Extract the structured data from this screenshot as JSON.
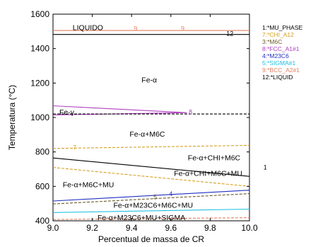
{
  "chart_data": {
    "type": "line",
    "title": "",
    "xlabel": "Percentual de massa de CR",
    "ylabel": "Temperatura (°C)",
    "xlim": [
      9.0,
      10.0
    ],
    "ylim": [
      400,
      1600
    ],
    "xticks": [
      "9.0",
      "9.2",
      "9.4",
      "9.6",
      "9.8",
      "10.0"
    ],
    "yticks": [
      "400",
      "600",
      "800",
      "1000",
      "1200",
      "1400",
      "1600"
    ],
    "grid": false,
    "legend_position": "right",
    "legend": [
      {
        "label": "1:*MU_PHASE",
        "color": "#000000"
      },
      {
        "label": "7:*CHI_A12",
        "color": "#d6a020"
      },
      {
        "label": "3:*M6C",
        "color": "#6b5a2a"
      },
      {
        "label": "8:*FCC_A1#1",
        "color": "#b040c0"
      },
      {
        "label": "4:*M23C6",
        "color": "#2030c0"
      },
      {
        "label": "5:*SIGMA#1",
        "color": "#20c0e0"
      },
      {
        "label": "9:*BCC_A2#1",
        "color": "#e08060"
      },
      {
        "label": "12:*LIQUID",
        "color": "#000000"
      }
    ],
    "series": [
      {
        "id": "liquidus",
        "color": "#000000",
        "style": "solid",
        "x": [
          9.0,
          10.0
        ],
        "y": [
          1482,
          1482
        ]
      },
      {
        "id": "bcc-liquid",
        "color": "#e08060",
        "style": "solid",
        "x": [
          9.0,
          10.0
        ],
        "y": [
          1505,
          1505
        ]
      },
      {
        "id": "fcc-upper",
        "color": "#b040c0",
        "style": "solid",
        "x": [
          9.0,
          9.68
        ],
        "y": [
          1068,
          1028
        ]
      },
      {
        "id": "fcc-lower",
        "color": "#b040c0",
        "style": "solid",
        "x": [
          9.0,
          9.68
        ],
        "y": [
          1015,
          1028
        ]
      },
      {
        "id": "alpha-gamma",
        "color": "#000000",
        "style": "dashed",
        "x": [
          9.0,
          10.0
        ],
        "y": [
          1020,
          1020
        ]
      },
      {
        "id": "chi-m6c",
        "color": "#d6a020",
        "style": "dashed",
        "x": [
          9.0,
          10.0
        ],
        "y": [
          820,
          838
        ]
      },
      {
        "id": "mu-upper",
        "color": "#000000",
        "style": "solid",
        "x": [
          9.0,
          10.0
        ],
        "y": [
          765,
          658
        ]
      },
      {
        "id": "chi-lower",
        "color": "#d6a020",
        "style": "dashed",
        "x": [
          9.0,
          10.0
        ],
        "y": [
          710,
          600
        ]
      },
      {
        "id": "m23c6",
        "color": "#2030c0",
        "style": "solid",
        "x": [
          9.0,
          10.0
        ],
        "y": [
          515,
          578
        ]
      },
      {
        "id": "m6c-lower",
        "color": "#6b5a2a",
        "style": "dashed",
        "x": [
          9.0,
          10.0
        ],
        "y": [
          498,
          558
        ]
      },
      {
        "id": "sigma",
        "color": "#20c0e0",
        "style": "solid",
        "x": [
          9.0,
          10.0
        ],
        "y": [
          448,
          468
        ]
      },
      {
        "id": "bcc-low",
        "color": "#e08060",
        "style": "dashed",
        "x": [
          9.0,
          10.0
        ],
        "y": [
          408,
          418
        ]
      }
    ],
    "region_labels": [
      {
        "text": "LIQUIDO",
        "x": 9.1,
        "y": 1525,
        "color": "#000000"
      },
      {
        "text": "Fe-α",
        "x": 9.49,
        "y": 1220,
        "color": "#000000"
      },
      {
        "text": "Fe-γ",
        "x": 9.07,
        "y": 1033,
        "color": "#000000"
      },
      {
        "text": "Fe-α+M6C",
        "x": 9.48,
        "y": 905,
        "color": "#000000"
      },
      {
        "text": "Fe-α+CHI+M6C",
        "x": 9.82,
        "y": 768,
        "color": "#000000"
      },
      {
        "text": "Fe-α+CHI+M6C+MU",
        "x": 9.79,
        "y": 678,
        "color": "#000000"
      },
      {
        "text": "Fe-α+M6C+MU",
        "x": 9.18,
        "y": 612,
        "color": "#000000"
      },
      {
        "text": "Fe-α+M23C6+M6C+MU",
        "x": 9.51,
        "y": 493,
        "color": "#000000"
      },
      {
        "text": "Fe-α+M23C6+MU+SIGMA",
        "x": 9.45,
        "y": 420,
        "color": "#000000"
      }
    ],
    "curve_labels": [
      {
        "text": "9",
        "x": 9.42,
        "y": 1515,
        "color": "#e08060"
      },
      {
        "text": "9",
        "x": 9.66,
        "y": 1515,
        "color": "#e08060"
      },
      {
        "text": "12",
        "x": 9.9,
        "y": 1488,
        "color": "#000000"
      },
      {
        "text": "8",
        "x": 9.7,
        "y": 1030,
        "color": "#b040c0"
      },
      {
        "text": "7",
        "x": 9.11,
        "y": 825,
        "color": "#d6a020"
      },
      {
        "text": "4",
        "x": 9.6,
        "y": 557,
        "color": "#2030c0"
      },
      {
        "text": "5",
        "x": 9.52,
        "y": 538,
        "color": "#6b5a2a"
      },
      {
        "text": "1",
        "x": 10.08,
        "y": 710,
        "color": "#000000"
      }
    ]
  }
}
